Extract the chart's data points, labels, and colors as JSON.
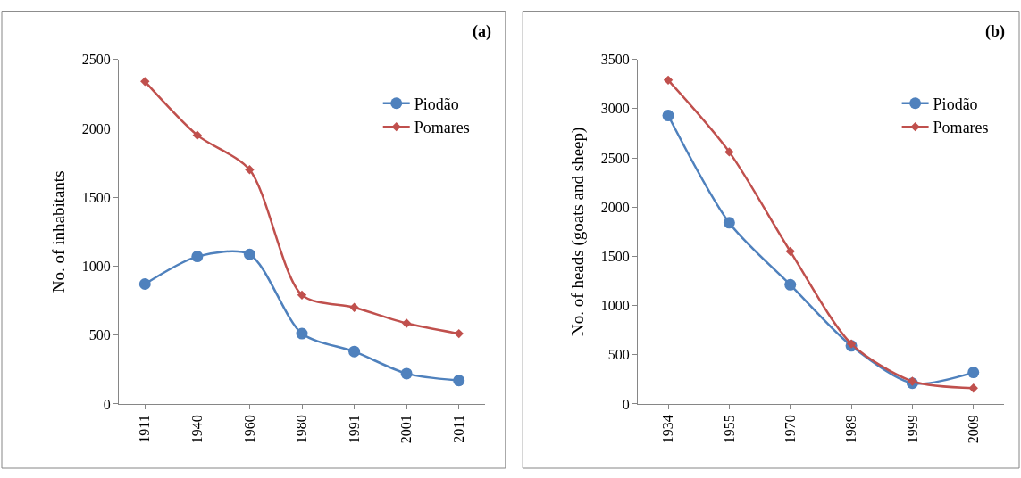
{
  "chart_data": [
    {
      "type": "line",
      "title": "(a)",
      "ylabel": "No. of inhabitants",
      "categories": [
        "1911",
        "1940",
        "1960",
        "1980",
        "1991",
        "2001",
        "2011"
      ],
      "ylim": [
        0,
        2500
      ],
      "yticks": [
        0,
        500,
        1000,
        1500,
        2000,
        2500
      ],
      "legend": "top right",
      "grid": false,
      "series": [
        {
          "name": "Piodão",
          "color": "#4f81bd",
          "marker": "circle",
          "values": [
            870,
            1070,
            1085,
            510,
            380,
            220,
            170
          ]
        },
        {
          "name": "Pomares",
          "color": "#c0504d",
          "marker": "diamond",
          "values": [
            2340,
            1950,
            1700,
            790,
            700,
            585,
            510
          ]
        }
      ]
    },
    {
      "type": "line",
      "title": "(b)",
      "ylabel": "No. of heads (goats and sheep)",
      "categories": [
        "1934",
        "1955",
        "1970",
        "1989",
        "1999",
        "2009"
      ],
      "ylim": [
        0,
        3500
      ],
      "yticks": [
        0,
        500,
        1000,
        1500,
        2000,
        2500,
        3000,
        3500
      ],
      "legend": "top right",
      "grid": false,
      "series": [
        {
          "name": "Piodão",
          "color": "#4f81bd",
          "marker": "circle",
          "values": [
            2930,
            1840,
            1210,
            590,
            210,
            320
          ]
        },
        {
          "name": "Pomares",
          "color": "#c0504d",
          "marker": "diamond",
          "values": [
            3290,
            2560,
            1550,
            610,
            230,
            160
          ]
        }
      ]
    }
  ]
}
